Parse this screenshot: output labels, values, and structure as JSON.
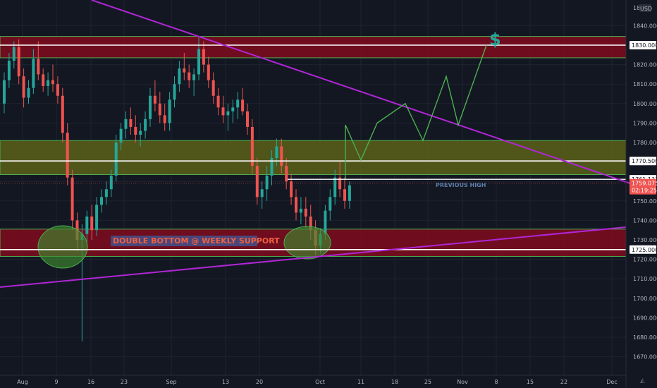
{
  "chart_data": {
    "type": "candlestick",
    "currency": "USD",
    "price_axis_top": "18",
    "y_ticks": [
      1670,
      1680,
      1690,
      1700,
      1710,
      1720,
      1730,
      1740,
      1750,
      1760,
      1770,
      1780,
      1790,
      1800,
      1810,
      1820,
      1830,
      1840
    ],
    "ylim": [
      1666,
      1850
    ],
    "x_ticks": [
      "Aug",
      "9",
      "16",
      "23",
      "Sep",
      "13",
      "20",
      "Oct",
      "11",
      "18",
      "25",
      "Nov",
      "8",
      "15",
      "22",
      "Dec"
    ],
    "price_tags": [
      {
        "label": "1830.000",
        "value": 1830,
        "style": "light"
      },
      {
        "label": "1770.500",
        "value": 1770.5,
        "style": "light"
      },
      {
        "label": "1761.131",
        "value": 1761.1,
        "style": "light"
      },
      {
        "label": "1725.000",
        "value": 1725,
        "style": "light"
      }
    ],
    "current_price": {
      "label": "1759.075",
      "countdown": "02:19:25",
      "value": 1759.1
    },
    "zones": [
      {
        "name": "resistance-zone",
        "from": 1823.5,
        "to": 1834.5,
        "color": "#800c1e"
      },
      {
        "name": "middle-zone",
        "from": 1763.5,
        "to": 1781,
        "color": "#5c6119"
      },
      {
        "name": "support-zone",
        "from": 1721.5,
        "to": 1735.5,
        "color": "#800c1e"
      }
    ],
    "levels": [
      1830,
      1770.5,
      1725
    ],
    "previous_high": 1761.1,
    "annotations": {
      "double_bottom": "DOUBLE BOTTOM @ WEEKLY SUPPORT",
      "previous_high": "PREVIOUS HIGH",
      "target_symbol": "$"
    },
    "projection": [
      1761.5,
      1789,
      1771,
      1790,
      1800,
      1781,
      1814,
      1789,
      1830
    ],
    "candles": [
      [
        1800,
        1816,
        1795,
        1812
      ],
      [
        1812,
        1826,
        1808,
        1822
      ],
      [
        1822,
        1832,
        1818,
        1829
      ],
      [
        1829,
        1833,
        1810,
        1814
      ],
      [
        1814,
        1818,
        1798,
        1803
      ],
      [
        1803,
        1812,
        1800,
        1808
      ],
      [
        1808,
        1828,
        1805,
        1823
      ],
      [
        1823,
        1832,
        1812,
        1815
      ],
      [
        1815,
        1818,
        1806,
        1809
      ],
      [
        1809,
        1816,
        1804,
        1812
      ],
      [
        1812,
        1820,
        1806,
        1810
      ],
      [
        1810,
        1814,
        1800,
        1804
      ],
      [
        1804,
        1808,
        1780,
        1785
      ],
      [
        1785,
        1790,
        1758,
        1762
      ],
      [
        1762,
        1766,
        1735,
        1740
      ],
      [
        1740,
        1744,
        1724,
        1730
      ],
      [
        1730,
        1738,
        1678,
        1733
      ],
      [
        1733,
        1745,
        1728,
        1742
      ],
      [
        1742,
        1748,
        1730,
        1735
      ],
      [
        1735,
        1752,
        1732,
        1748
      ],
      [
        1748,
        1756,
        1744,
        1752
      ],
      [
        1752,
        1760,
        1748,
        1756
      ],
      [
        1756,
        1766,
        1752,
        1763
      ],
      [
        1763,
        1784,
        1760,
        1780
      ],
      [
        1780,
        1790,
        1776,
        1787
      ],
      [
        1787,
        1796,
        1782,
        1792
      ],
      [
        1792,
        1798,
        1784,
        1788
      ],
      [
        1788,
        1794,
        1780,
        1784
      ],
      [
        1784,
        1790,
        1778,
        1786
      ],
      [
        1786,
        1796,
        1782,
        1792
      ],
      [
        1792,
        1808,
        1788,
        1804
      ],
      [
        1804,
        1812,
        1796,
        1800
      ],
      [
        1800,
        1806,
        1790,
        1794
      ],
      [
        1794,
        1800,
        1786,
        1790
      ],
      [
        1790,
        1806,
        1786,
        1802
      ],
      [
        1802,
        1814,
        1798,
        1810
      ],
      [
        1810,
        1822,
        1806,
        1818
      ],
      [
        1818,
        1826,
        1812,
        1816
      ],
      [
        1816,
        1820,
        1808,
        1812
      ],
      [
        1812,
        1818,
        1804,
        1815
      ],
      [
        1815,
        1834,
        1812,
        1828
      ],
      [
        1828,
        1832,
        1816,
        1820
      ],
      [
        1820,
        1824,
        1808,
        1812
      ],
      [
        1812,
        1816,
        1800,
        1804
      ],
      [
        1804,
        1808,
        1794,
        1798
      ],
      [
        1798,
        1804,
        1790,
        1794
      ],
      [
        1794,
        1800,
        1786,
        1796
      ],
      [
        1796,
        1802,
        1790,
        1798
      ],
      [
        1798,
        1806,
        1792,
        1802
      ],
      [
        1802,
        1808,
        1794,
        1796
      ],
      [
        1796,
        1800,
        1784,
        1788
      ],
      [
        1788,
        1792,
        1764,
        1768
      ],
      [
        1768,
        1772,
        1748,
        1752
      ],
      [
        1752,
        1760,
        1746,
        1756
      ],
      [
        1756,
        1768,
        1750,
        1763
      ],
      [
        1763,
        1776,
        1758,
        1772
      ],
      [
        1772,
        1782,
        1768,
        1778
      ],
      [
        1778,
        1782,
        1764,
        1768
      ],
      [
        1768,
        1772,
        1756,
        1760
      ],
      [
        1760,
        1764,
        1748,
        1752
      ],
      [
        1752,
        1756,
        1740,
        1744
      ],
      [
        1744,
        1752,
        1738,
        1746
      ],
      [
        1746,
        1752,
        1736,
        1742
      ],
      [
        1742,
        1748,
        1730,
        1735
      ],
      [
        1735,
        1740,
        1722,
        1727
      ],
      [
        1727,
        1736,
        1723,
        1733
      ],
      [
        1733,
        1748,
        1730,
        1745
      ],
      [
        1745,
        1756,
        1740,
        1752
      ],
      [
        1752,
        1766,
        1748,
        1762
      ],
      [
        1762,
        1770,
        1752,
        1756
      ],
      [
        1756,
        1762,
        1746,
        1750
      ],
      [
        1750,
        1760,
        1746,
        1758
      ]
    ]
  }
}
